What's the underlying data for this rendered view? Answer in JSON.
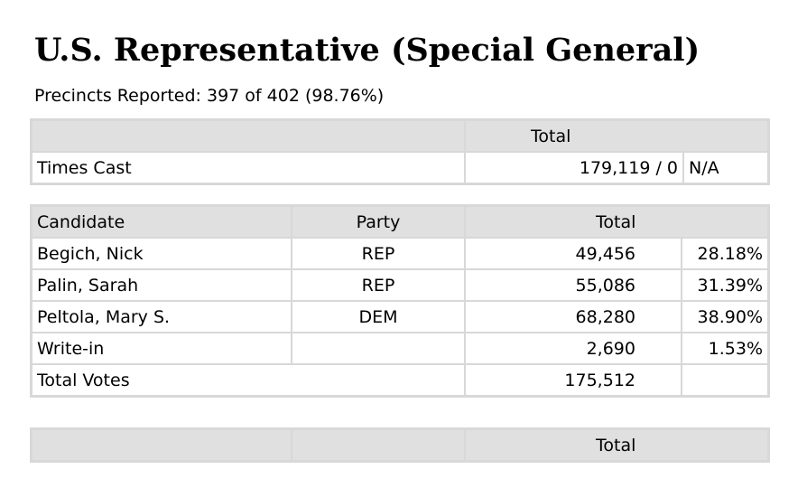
{
  "title": "U.S. Representative (Special General)",
  "precincts": "Precincts Reported: 397 of 402 (98.76%)",
  "times_table": {
    "header_total": "Total",
    "row_label": "Times Cast",
    "row_value": "179,119 / 0",
    "row_pct": "N/A"
  },
  "candidates_table": {
    "headers": {
      "candidate": "Candidate",
      "party": "Party",
      "total": "Total"
    },
    "rows": [
      {
        "name": "Begich, Nick",
        "party": "REP",
        "votes": "49,456",
        "pct": "28.18%"
      },
      {
        "name": "Palin, Sarah",
        "party": "REP",
        "votes": "55,086",
        "pct": "31.39%"
      },
      {
        "name": "Peltola, Mary S.",
        "party": "DEM",
        "votes": "68,280",
        "pct": "38.90%"
      },
      {
        "name": "Write-in",
        "party": "",
        "votes": "2,690",
        "pct": "1.53%"
      }
    ],
    "total_label": "Total Votes",
    "total_votes": "175,512"
  },
  "bottom_table": {
    "header_total": "Total"
  }
}
